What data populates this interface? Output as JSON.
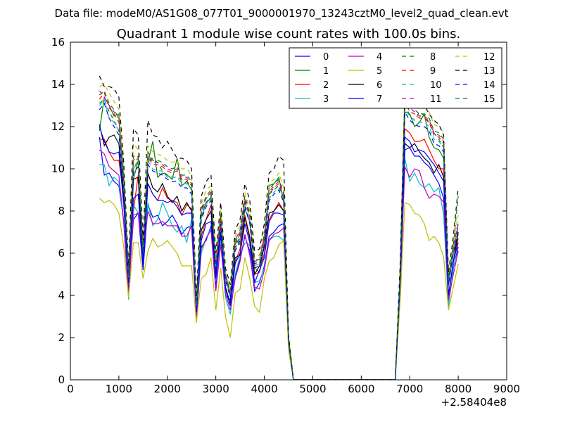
{
  "header": {
    "datafile": "Data file: modeM0/AS1G08_077T01_9000001970_13243cztM0_level2_quad_clean.evt"
  },
  "chart_data": {
    "type": "line",
    "title": "Quadrant 1 module wise count rates with 100.0s bins.",
    "xlabel": "",
    "ylabel": "",
    "x_offset_label": "+2.58404e8",
    "xlim": [
      0,
      9000
    ],
    "ylim": [
      0,
      16
    ],
    "x_ticks": [
      0,
      1000,
      2000,
      3000,
      4000,
      5000,
      6000,
      7000,
      8000,
      9000
    ],
    "y_ticks": [
      0,
      2,
      4,
      6,
      8,
      10,
      12,
      14,
      16
    ],
    "grid": false,
    "legend_position": "top-right",
    "x": [
      600,
      700,
      800,
      900,
      1000,
      1100,
      1200,
      1300,
      1400,
      1500,
      1600,
      1700,
      1800,
      1900,
      2000,
      2100,
      2200,
      2300,
      2400,
      2500,
      2600,
      2700,
      2800,
      2900,
      3000,
      3100,
      3200,
      3300,
      3400,
      3500,
      3600,
      3700,
      3800,
      3900,
      4000,
      4100,
      4200,
      4300,
      4400,
      4500,
      4600,
      4700,
      6700,
      6800,
      6900,
      7000,
      7100,
      7200,
      7300,
      7400,
      7500,
      7600,
      7700,
      7800,
      7900,
      8000
    ],
    "series": [
      {
        "name": "0",
        "color": "#0000ff",
        "dash": "solid",
        "values": [
          11.5,
          9.7,
          9.8,
          9.4,
          9.2,
          7.5,
          4.3,
          7.6,
          7.9,
          5.2,
          8.3,
          7.7,
          7.8,
          7.3,
          7.5,
          7.8,
          7.4,
          6.9,
          7.2,
          7.3,
          3.2,
          6.3,
          6.6,
          7.3,
          4.4,
          6.8,
          4.0,
          3.8,
          4.9,
          5.7,
          6.8,
          6.1,
          4.2,
          4.6,
          5.4,
          6.8,
          7.0,
          7.3,
          7.4,
          1.8,
          0.0,
          0.0,
          0.0,
          4.0,
          10.9,
          11.0,
          10.6,
          10.6,
          10.3,
          10.1,
          9.7,
          9.3,
          8.6,
          3.5,
          5.3,
          6.3
        ]
      },
      {
        "name": "1",
        "color": "#008000",
        "dash": "solid",
        "values": [
          11.8,
          13.4,
          13.0,
          12.5,
          12.6,
          8.6,
          4.5,
          9.5,
          10.4,
          6.1,
          10.3,
          11.3,
          9.6,
          9.8,
          9.7,
          9.5,
          10.5,
          9.2,
          9.4,
          9.0,
          3.5,
          7.7,
          8.4,
          8.6,
          5.3,
          7.8,
          5.0,
          4.0,
          6.7,
          6.4,
          8.1,
          7.5,
          5.3,
          5.1,
          6.4,
          9.2,
          9.3,
          9.6,
          8.4,
          2.0,
          0.0,
          0.0,
          0.0,
          4.6,
          12.7,
          12.6,
          12.0,
          12.2,
          12.6,
          11.5,
          11.0,
          10.9,
          10.5,
          4.5,
          6.0,
          6.9
        ]
      },
      {
        "name": "2",
        "color": "#ff0000",
        "dash": "solid",
        "values": [
          11.4,
          11.4,
          10.8,
          10.4,
          10.4,
          8.7,
          4.6,
          8.0,
          9.7,
          5.6,
          9.3,
          8.8,
          8.5,
          9.1,
          8.6,
          8.5,
          8.4,
          7.8,
          8.3,
          8.1,
          3.3,
          6.8,
          7.6,
          8.3,
          5.1,
          7.3,
          4.3,
          3.6,
          5.6,
          6.2,
          7.8,
          6.8,
          5.0,
          5.1,
          6.0,
          7.6,
          8.0,
          8.4,
          8.0,
          1.9,
          0.0,
          0.0,
          0.0,
          4.4,
          11.9,
          11.7,
          11.3,
          11.3,
          11.4,
          10.9,
          10.4,
          10.0,
          10.0,
          4.0,
          5.6,
          6.7
        ]
      },
      {
        "name": "3",
        "color": "#00bfbf",
        "dash": "solid",
        "values": [
          10.2,
          10.2,
          9.2,
          9.6,
          9.4,
          7.4,
          3.8,
          8.3,
          7.9,
          5.9,
          8.4,
          7.3,
          7.6,
          8.4,
          7.9,
          7.3,
          7.0,
          7.3,
          6.5,
          7.6,
          2.9,
          6.0,
          6.7,
          7.2,
          4.7,
          6.6,
          3.9,
          3.1,
          5.0,
          5.9,
          6.5,
          6.4,
          4.6,
          4.7,
          5.3,
          6.6,
          6.8,
          6.8,
          6.6,
          1.8,
          0.0,
          0.0,
          0.0,
          4.2,
          10.5,
          9.4,
          9.8,
          9.3,
          9.1,
          9.3,
          8.9,
          9.1,
          7.8,
          3.5,
          5.4,
          6.1
        ]
      },
      {
        "name": "4",
        "color": "#bf00bf",
        "dash": "solid",
        "values": [
          10.9,
          10.7,
          10.1,
          9.9,
          9.7,
          7.5,
          4.0,
          7.8,
          7.9,
          5.8,
          8.0,
          7.4,
          7.4,
          7.5,
          7.3,
          7.3,
          7.3,
          6.8,
          6.8,
          7.3,
          2.9,
          6.2,
          6.7,
          7.1,
          4.2,
          6.4,
          4.1,
          3.3,
          4.8,
          5.6,
          6.9,
          5.9,
          4.4,
          4.3,
          5.2,
          6.6,
          6.9,
          7.0,
          7.2,
          1.8,
          0.0,
          0.0,
          0.0,
          4.2,
          10.1,
          9.6,
          10.0,
          9.9,
          9.1,
          8.6,
          8.8,
          8.7,
          8.4,
          3.8,
          5.0,
          6.1
        ]
      },
      {
        "name": "5",
        "color": "#bfbf00",
        "dash": "solid",
        "values": [
          8.6,
          8.4,
          8.5,
          8.3,
          7.9,
          6.3,
          3.9,
          6.5,
          6.5,
          4.8,
          6.1,
          6.7,
          6.3,
          6.4,
          6.6,
          6.3,
          6.0,
          5.4,
          5.4,
          5.4,
          2.7,
          4.8,
          5.0,
          5.8,
          3.3,
          5.3,
          3.0,
          2.0,
          4.1,
          4.3,
          5.8,
          4.8,
          3.5,
          3.2,
          4.8,
          5.6,
          5.8,
          6.4,
          6.6,
          1.4,
          0.0,
          0.0,
          0.0,
          3.6,
          8.4,
          8.3,
          7.9,
          7.8,
          7.4,
          6.6,
          6.8,
          6.5,
          5.8,
          3.3,
          4.4,
          5.5
        ]
      },
      {
        "name": "6",
        "color": "#000000",
        "dash": "solid",
        "values": [
          12.1,
          11.1,
          11.5,
          11.6,
          11.2,
          8.6,
          4.8,
          9.5,
          9.6,
          5.4,
          9.8,
          9.1,
          8.9,
          9.3,
          8.7,
          8.4,
          8.7,
          8.0,
          8.4,
          8.0,
          3.4,
          7.1,
          7.6,
          8.0,
          4.9,
          7.0,
          4.4,
          3.6,
          5.8,
          5.9,
          7.7,
          6.7,
          5.0,
          5.4,
          6.3,
          7.9,
          8.0,
          8.3,
          8.0,
          1.9,
          0.0,
          0.0,
          0.0,
          4.6,
          11.2,
          11.0,
          11.2,
          10.8,
          10.5,
          10.3,
          9.8,
          10.2,
          9.6,
          4.0,
          5.6,
          7.0
        ]
      },
      {
        "name": "7",
        "color": "#0000ff",
        "dash": "solid",
        "values": [
          12.0,
          11.3,
          10.8,
          10.7,
          10.8,
          8.3,
          4.6,
          8.6,
          8.8,
          5.4,
          9.3,
          8.8,
          8.5,
          8.5,
          8.4,
          8.5,
          8.2,
          7.8,
          7.9,
          7.9,
          3.2,
          6.6,
          7.4,
          7.5,
          4.8,
          7.0,
          4.3,
          3.5,
          5.5,
          6.0,
          7.4,
          6.5,
          4.6,
          5.2,
          5.8,
          7.5,
          7.9,
          7.9,
          7.8,
          1.9,
          0.0,
          0.0,
          0.0,
          4.5,
          11.5,
          11.3,
          10.8,
          10.9,
          10.8,
          10.5,
          10.2,
          9.8,
          9.4,
          4.0,
          5.6,
          6.5
        ]
      },
      {
        "name": "8",
        "color": "#008000",
        "dash": "dashed",
        "values": [
          13.1,
          13.3,
          12.7,
          12.3,
          11.8,
          9.4,
          4.8,
          9.9,
          10.5,
          5.9,
          10.3,
          10.5,
          10.3,
          9.9,
          9.7,
          9.6,
          9.6,
          9.5,
          9.4,
          9.2,
          3.5,
          7.8,
          8.4,
          8.7,
          5.4,
          7.6,
          4.8,
          4.0,
          6.3,
          6.8,
          8.4,
          7.8,
          5.5,
          5.5,
          6.6,
          8.8,
          9.0,
          9.2,
          8.6,
          2.0,
          0.0,
          0.0,
          0.0,
          4.8,
          13.1,
          12.5,
          12.3,
          12.7,
          12.5,
          12.2,
          11.7,
          11.4,
          11.0,
          4.5,
          6.1,
          7.3
        ]
      },
      {
        "name": "9",
        "color": "#ff0000",
        "dash": "dashed",
        "values": [
          13.3,
          13.6,
          12.9,
          12.6,
          12.2,
          9.6,
          5.0,
          10.3,
          10.5,
          6.1,
          10.6,
          10.2,
          10.2,
          10.1,
          9.9,
          9.8,
          9.9,
          9.5,
          9.5,
          9.2,
          3.6,
          7.9,
          8.6,
          8.8,
          5.4,
          7.7,
          4.9,
          4.1,
          6.4,
          6.9,
          8.5,
          7.7,
          5.5,
          5.6,
          6.7,
          8.8,
          9.1,
          9.3,
          8.7,
          2.0,
          0.0,
          0.0,
          0.0,
          4.8,
          13.2,
          12.7,
          12.6,
          12.4,
          12.4,
          12.2,
          11.6,
          11.5,
          11.2,
          4.7,
          6.2,
          7.4
        ]
      },
      {
        "name": "10",
        "color": "#00bfbf",
        "dash": "dashed",
        "values": [
          13.0,
          13.3,
          12.4,
          12.2,
          11.8,
          9.5,
          4.8,
          10.0,
          10.3,
          5.8,
          10.4,
          10.0,
          9.9,
          9.9,
          9.6,
          9.6,
          9.6,
          9.3,
          9.3,
          9.0,
          3.4,
          7.7,
          8.3,
          8.7,
          5.3,
          7.5,
          4.8,
          3.9,
          6.2,
          6.7,
          8.3,
          7.6,
          5.4,
          5.5,
          6.5,
          8.6,
          8.9,
          9.1,
          8.5,
          2.0,
          0.0,
          0.0,
          0.0,
          4.7,
          12.9,
          12.5,
          12.3,
          12.2,
          12.2,
          12.0,
          11.4,
          11.3,
          11.0,
          4.6,
          6.1,
          7.2
        ]
      },
      {
        "name": "11",
        "color": "#bf00bf",
        "dash": "dashed",
        "values": [
          13.7,
          13.4,
          13.0,
          12.7,
          12.4,
          9.7,
          5.0,
          10.4,
          10.6,
          6.0,
          10.7,
          10.3,
          10.3,
          10.2,
          10.0,
          9.9,
          10.0,
          9.6,
          9.6,
          9.3,
          3.6,
          8.0,
          8.6,
          8.9,
          5.5,
          7.8,
          4.9,
          4.1,
          6.5,
          7.0,
          8.6,
          7.8,
          5.6,
          5.7,
          6.8,
          8.9,
          9.2,
          9.4,
          8.8,
          2.0,
          0.0,
          0.0,
          0.0,
          4.9,
          13.8,
          12.9,
          12.7,
          12.5,
          12.5,
          12.3,
          11.7,
          11.6,
          11.3,
          4.7,
          6.3,
          7.5
        ]
      },
      {
        "name": "12",
        "color": "#bfbf00",
        "dash": "dashed",
        "values": [
          13.9,
          14.0,
          13.6,
          13.2,
          12.8,
          10.0,
          5.2,
          11.2,
          10.9,
          6.3,
          11.1,
          10.8,
          10.7,
          10.6,
          10.4,
          10.3,
          10.4,
          10.0,
          10.0,
          9.7,
          3.7,
          8.3,
          9.0,
          9.2,
          5.7,
          8.1,
          5.1,
          4.3,
          6.8,
          7.3,
          8.9,
          8.1,
          5.8,
          5.9,
          7.1,
          9.3,
          9.5,
          9.8,
          9.1,
          2.1,
          0.0,
          0.0,
          0.0,
          5.1,
          13.9,
          13.3,
          13.1,
          12.9,
          12.9,
          12.7,
          12.1,
          12.0,
          11.7,
          4.9,
          6.5,
          7.8
        ]
      },
      {
        "name": "13",
        "color": "#000000",
        "dash": "dashed",
        "values": [
          14.4,
          13.9,
          13.9,
          13.8,
          13.4,
          10.3,
          5.4,
          11.9,
          11.6,
          6.6,
          12.3,
          11.6,
          11.5,
          11.0,
          11.3,
          10.9,
          10.5,
          10.5,
          10.4,
          10.0,
          3.9,
          8.7,
          9.4,
          9.7,
          6.0,
          8.4,
          5.3,
          4.5,
          7.1,
          7.6,
          9.3,
          8.5,
          6.1,
          6.2,
          7.4,
          9.8,
          10.0,
          10.6,
          10.4,
          2.1,
          0.0,
          0.0,
          0.0,
          5.3,
          13.6,
          13.3,
          13.1,
          12.9,
          13.0,
          12.6,
          12.3,
          12.1,
          11.6,
          5.1,
          6.8,
          9.1
        ]
      },
      {
        "name": "14",
        "color": "#0000ff",
        "dash": "dashed",
        "values": [
          12.8,
          13.1,
          12.4,
          12.0,
          11.6,
          9.2,
          4.7,
          9.8,
          10.1,
          5.8,
          10.2,
          9.9,
          9.8,
          9.7,
          9.5,
          9.4,
          9.4,
          9.1,
          9.1,
          8.8,
          3.4,
          7.6,
          8.2,
          8.5,
          5.2,
          7.4,
          4.7,
          3.9,
          6.1,
          6.6,
          8.2,
          7.4,
          5.3,
          5.4,
          6.4,
          8.5,
          8.8,
          9.0,
          8.4,
          1.9,
          0.0,
          0.0,
          0.0,
          4.7,
          12.7,
          12.3,
          12.1,
          12.0,
          12.0,
          11.8,
          11.2,
          11.1,
          10.8,
          4.5,
          6.0,
          7.1
        ]
      },
      {
        "name": "15",
        "color": "#008000",
        "dash": "dashed",
        "values": [
          13.5,
          13.7,
          13.1,
          12.8,
          12.4,
          9.8,
          5.0,
          10.6,
          10.6,
          6.1,
          10.8,
          10.4,
          10.4,
          10.3,
          10.1,
          10.0,
          10.1,
          9.7,
          9.7,
          9.4,
          3.6,
          8.1,
          8.7,
          9.0,
          5.5,
          7.9,
          5.0,
          4.2,
          6.6,
          7.1,
          8.7,
          7.9,
          5.7,
          5.7,
          6.9,
          9.0,
          9.3,
          9.5,
          8.9,
          2.0,
          0.0,
          0.0,
          0.0,
          4.9,
          13.5,
          13.0,
          12.8,
          12.6,
          12.6,
          12.4,
          11.8,
          11.7,
          11.4,
          4.8,
          6.4,
          8.7
        ]
      }
    ]
  }
}
